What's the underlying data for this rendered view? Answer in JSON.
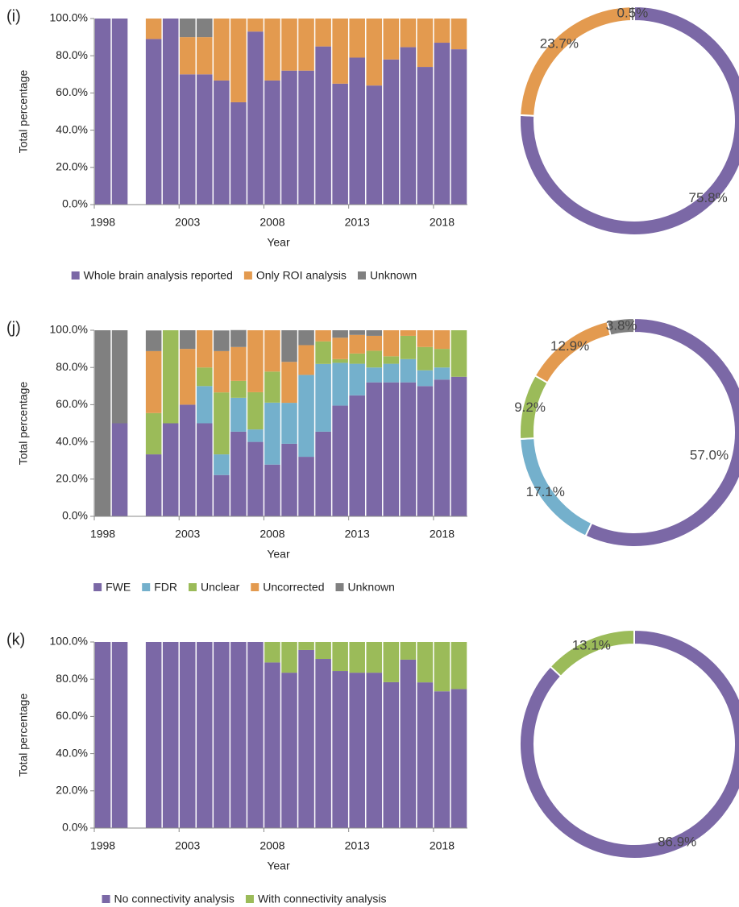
{
  "chart_data": [
    {
      "type": "bar",
      "stacked": true,
      "panel_label": "(i)",
      "y_label": "Total percentage",
      "x_label": "Year",
      "x": [
        1998,
        1999,
        2000,
        2001,
        2002,
        2003,
        2004,
        2005,
        2006,
        2007,
        2008,
        2009,
        2010,
        2011,
        2012,
        2013,
        2014,
        2015,
        2016,
        2017,
        2018,
        2019
      ],
      "xlim": [
        1997.5,
        2019.5
      ],
      "xticks": [
        1998,
        2003,
        2008,
        2013,
        2018
      ],
      "ylim": [
        0,
        100
      ],
      "yticks": [
        {
          "value": 0,
          "label": "0.0%"
        },
        {
          "value": 20,
          "label": "20.0%"
        },
        {
          "value": 40,
          "label": "40.0%"
        },
        {
          "value": 60,
          "label": "60.0%"
        },
        {
          "value": 80,
          "label": "80.0%"
        },
        {
          "value": 100,
          "label": "100.0%"
        }
      ],
      "series": [
        {
          "name": "Whole brain analysis reported",
          "color": "#7b68a6",
          "values": [
            100,
            100,
            null,
            89,
            100,
            70,
            70,
            66.7,
            55,
            93,
            66.7,
            72,
            72,
            85,
            65,
            79,
            64,
            78,
            84.6,
            74,
            87,
            83.5
          ]
        },
        {
          "name": "Only ROI analysis",
          "color": "#e39a4f",
          "values": [
            0,
            0,
            null,
            11,
            0,
            20,
            20,
            33.3,
            45,
            7,
            33.3,
            28,
            28,
            15,
            35,
            21,
            36,
            22,
            15.4,
            26,
            13,
            16.5
          ]
        },
        {
          "name": "Unknown",
          "color": "#808080",
          "values": [
            0,
            0,
            null,
            0,
            0,
            10,
            10,
            0,
            0,
            0,
            0,
            0,
            0,
            0,
            0,
            0,
            0,
            0,
            0,
            0,
            0,
            0
          ]
        }
      ]
    },
    {
      "type": "pie",
      "donut": true,
      "values": [
        75.8,
        23.7,
        0.5
      ],
      "value_labels": [
        "75.8%",
        "23.7%",
        "0.5%"
      ],
      "colors": [
        "#7b68a6",
        "#e39a4f",
        "#808080"
      ]
    },
    {
      "type": "bar",
      "stacked": true,
      "panel_label": "(j)",
      "y_label": "Total percentage",
      "x_label": "Year",
      "x": [
        1998,
        1999,
        2000,
        2001,
        2002,
        2003,
        2004,
        2005,
        2006,
        2007,
        2008,
        2009,
        2010,
        2011,
        2012,
        2013,
        2014,
        2015,
        2016,
        2017,
        2018,
        2019
      ],
      "xlim": [
        1997.5,
        2019.5
      ],
      "xticks": [
        1998,
        2003,
        2008,
        2013,
        2018
      ],
      "ylim": [
        0,
        100
      ],
      "yticks": [
        {
          "value": 0,
          "label": "0.0%"
        },
        {
          "value": 20,
          "label": "20.0%"
        },
        {
          "value": 40,
          "label": "40.0%"
        },
        {
          "value": 60,
          "label": "60.0%"
        },
        {
          "value": 80,
          "label": "80.0%"
        },
        {
          "value": 100,
          "label": "100.0%"
        }
      ],
      "series": [
        {
          "name": "FWE",
          "color": "#7b68a6",
          "values": [
            0,
            50,
            null,
            33.3,
            50,
            60,
            50,
            22.2,
            45.5,
            40,
            27.8,
            39,
            32,
            45.5,
            59.5,
            65,
            72,
            72,
            72,
            70,
            73.5,
            75
          ]
        },
        {
          "name": "FDR",
          "color": "#74b0cc",
          "values": [
            0,
            0,
            null,
            0,
            0,
            0,
            20,
            11.1,
            18.2,
            6.7,
            33.3,
            22,
            44,
            36.4,
            23,
            17,
            8,
            10,
            12.5,
            8.5,
            6.5,
            0
          ]
        },
        {
          "name": "Unclear",
          "color": "#9bbb59",
          "values": [
            0,
            0,
            null,
            22.2,
            50,
            0,
            10,
            33.3,
            9.1,
            20,
            16.7,
            0,
            0,
            12.1,
            2,
            5.5,
            9,
            4,
            12.5,
            12.5,
            10,
            25
          ]
        },
        {
          "name": "Uncorrected",
          "color": "#e39a4f",
          "values": [
            0,
            0,
            null,
            33.3,
            0,
            30,
            20,
            22.2,
            18.2,
            33.3,
            22.2,
            22,
            16,
            6,
            11.5,
            10,
            8,
            14,
            3,
            9,
            10,
            0
          ]
        },
        {
          "name": "Unknown",
          "color": "#808080",
          "values": [
            100,
            50,
            null,
            11.1,
            0,
            10,
            0,
            11.1,
            9.1,
            0,
            0,
            17,
            8,
            0,
            4,
            2.5,
            3,
            0,
            0,
            0,
            0,
            0
          ]
        }
      ]
    },
    {
      "type": "pie",
      "donut": true,
      "values": [
        57.0,
        17.1,
        9.2,
        12.9,
        3.8
      ],
      "value_labels": [
        "57.0%",
        "17.1%",
        "9.2%",
        "12.9%",
        "3.8%"
      ],
      "colors": [
        "#7b68a6",
        "#74b0cc",
        "#9bbb59",
        "#e39a4f",
        "#808080"
      ]
    },
    {
      "type": "bar",
      "stacked": true,
      "panel_label": "(k)",
      "y_label": "Total percentage",
      "x_label": "Year",
      "x": [
        1998,
        1999,
        2000,
        2001,
        2002,
        2003,
        2004,
        2005,
        2006,
        2007,
        2008,
        2009,
        2010,
        2011,
        2012,
        2013,
        2014,
        2015,
        2016,
        2017,
        2018,
        2019
      ],
      "xlim": [
        1997.5,
        2019.5
      ],
      "xticks": [
        1998,
        2003,
        2008,
        2013,
        2018
      ],
      "ylim": [
        0,
        100
      ],
      "yticks": [
        {
          "value": 0,
          "label": "0.0%"
        },
        {
          "value": 20,
          "label": "20.0%"
        },
        {
          "value": 40,
          "label": "40.0%"
        },
        {
          "value": 60,
          "label": "60.0%"
        },
        {
          "value": 80,
          "label": "80.0%"
        },
        {
          "value": 100,
          "label": "100.0%"
        }
      ],
      "series": [
        {
          "name": "No connectivity analysis",
          "color": "#7b68a6",
          "values": [
            100,
            100,
            null,
            100,
            100,
            100,
            100,
            100,
            100,
            100,
            89,
            83.5,
            95.7,
            90.9,
            84.4,
            83.5,
            83.5,
            78.4,
            90.5,
            78.3,
            73.5,
            74.7
          ]
        },
        {
          "name": "With connectivity analysis",
          "color": "#9bbb59",
          "values": [
            0,
            0,
            null,
            0,
            0,
            0,
            0,
            0,
            0,
            0,
            11,
            16.5,
            4.3,
            9.1,
            15.6,
            16.5,
            16.5,
            21.6,
            9.5,
            21.7,
            26.5,
            25.3
          ]
        }
      ]
    },
    {
      "type": "pie",
      "donut": true,
      "values": [
        86.9,
        13.1
      ],
      "value_labels": [
        "86.9%",
        "13.1%"
      ],
      "colors": [
        "#7b68a6",
        "#9bbb59"
      ]
    }
  ]
}
